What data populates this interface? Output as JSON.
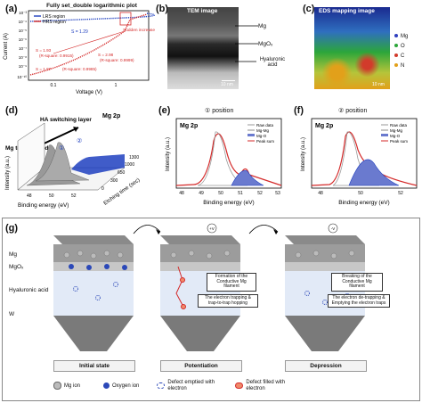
{
  "panels": {
    "a": {
      "letter": "(a)",
      "title": "Fully set_double logarithmic plot",
      "legend": [
        "LRS region",
        "HRS region"
      ],
      "s_main": "S = 1.29",
      "annotation": "Sudden increase",
      "s_lines": [
        {
          "s": "S = 1.93",
          "r": "(R-square: 0.9915)"
        },
        {
          "s": "S = 2.98",
          "r": "(R-square: 0.9999)"
        },
        {
          "s": "S = 1.07",
          "r": "(R-square: 0.9985)"
        }
      ],
      "xlabel": "Voltage (V)",
      "ylabel": "Current (A)",
      "xticks": [
        "0.1",
        "1"
      ],
      "yticks": [
        "10⁻³",
        "10⁻⁴",
        "10⁻⁵",
        "10⁻⁶",
        "10⁻⁷",
        "10⁻⁸",
        "10⁻⁹",
        "10⁻¹⁰"
      ]
    },
    "b": {
      "letter": "(b)",
      "title": "TEM image",
      "labels": [
        "Mg",
        "MgOₓ",
        "Hyaluronic acid"
      ],
      "scale": "10 nm"
    },
    "c": {
      "letter": "(c)",
      "title": "EDS mapping image",
      "legend": [
        "Mg",
        "O",
        "C",
        "N"
      ],
      "legend_colors": [
        "#2f3fbf",
        "#2ca63a",
        "#d23b2b",
        "#e2a01a"
      ],
      "scale": "10 nm"
    },
    "d": {
      "letter": "(d)",
      "title": "Mg 2p",
      "layer": "HA switching layer",
      "electrode": "Mg top electrode",
      "markers": [
        "①",
        "②"
      ],
      "xlabel": "Binding energy (eV)",
      "ylabel": "Intensity (a.u.)",
      "zlabel": "Etching time (sec)",
      "xticks": [
        "48",
        "50",
        "52"
      ],
      "zticks": [
        "1300",
        "1000",
        "650",
        "300",
        "0"
      ]
    },
    "e": {
      "letter": "(e)",
      "title": "① position",
      "element": "Mg 2p",
      "legend": [
        "Raw data",
        "Mg-Mg",
        "Mg-O",
        "Peak sum"
      ],
      "xlabel": "Binding energy (eV)",
      "ylabel": "Intensity (a.u.)",
      "xticks": [
        "48",
        "49",
        "50",
        "51",
        "52",
        "53"
      ]
    },
    "f": {
      "letter": "(f)",
      "title": "② position",
      "element": "Mg 2p",
      "legend": [
        "Raw data",
        "Mg-Mg",
        "Mg-O",
        "Peak sum"
      ],
      "xlabel": "Binding energy (eV)",
      "ylabel": "Intensity (a.u.)",
      "xticks": [
        "48",
        "50",
        "52"
      ]
    },
    "g": {
      "letter": "(g)",
      "layers": [
        "Mg",
        "MgOₓ",
        "Hyaluronic acid",
        "W"
      ],
      "states": [
        "Initial state",
        "Potentiation",
        "Depression"
      ],
      "bias": [
        "+V",
        "-V"
      ],
      "notes": [
        "Formation of the Conductive Mg filament",
        "The electron trapping & trap-to-trap hopping",
        "Breaking of the Conductive Mg filament",
        "The electron de-trapping & Emptying the electron traps"
      ],
      "legend": [
        "Mg ion",
        "Oxygen ion",
        "Defect emptied with electron",
        "Defect filled with electron"
      ]
    }
  }
}
